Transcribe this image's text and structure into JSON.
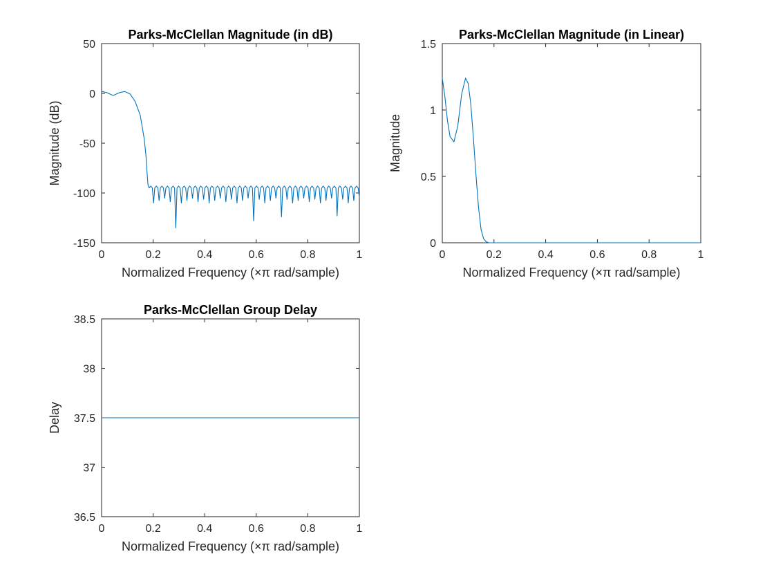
{
  "chart_data": [
    {
      "type": "line",
      "title": "Parks-McClellan Magnitude (in dB)",
      "xlabel": "Normalized Frequency (×π rad/sample)",
      "ylabel": "Magnitude (dB)",
      "xlim": [
        0,
        1
      ],
      "ylim": [
        -150,
        50
      ],
      "xticks": [
        0,
        0.2,
        0.4,
        0.6,
        0.8,
        1
      ],
      "xtick_labels": [
        "0",
        "0.2",
        "0.4",
        "0.6",
        "0.8",
        "1"
      ],
      "yticks": [
        -150,
        -100,
        -50,
        0,
        50
      ],
      "ytick_labels": [
        "-150",
        "-100",
        "-50",
        "0",
        "50"
      ],
      "grid": false,
      "line_color": "#0072BD",
      "series": [
        {
          "x": [
            0,
            0.02,
            0.045,
            0.07,
            0.09,
            0.11,
            0.13,
            0.15,
            0.165,
            0.172,
            0.176,
            0.18,
            0.185,
            0.2,
            0.25,
            0.3,
            0.35,
            0.4,
            0.45,
            0.5,
            0.55,
            0.6,
            0.65,
            0.7,
            0.75,
            0.8,
            0.85,
            0.9,
            0.95,
            1.0
          ],
          "y": [
            1.9,
            0.8,
            -2.1,
            0.8,
            1.9,
            -0.5,
            -8,
            -22,
            -45,
            -62,
            -78,
            -92,
            -93,
            -93,
            -93,
            -93,
            -93,
            -93,
            -93,
            -93,
            -93,
            -93,
            -93,
            -93,
            -93,
            -93,
            -93,
            -93,
            -93,
            -93
          ]
        }
      ],
      "stopband": {
        "start": 0.18,
        "ripple_peak_db": -93,
        "lobe_count": 38,
        "typical_notch_db": -110,
        "deep_notches": [
          {
            "x": 0.285,
            "y": -135
          },
          {
            "x": 0.585,
            "y": -128
          },
          {
            "x": 0.7,
            "y": -124
          },
          {
            "x": 0.91,
            "y": -123
          }
        ]
      }
    },
    {
      "type": "line",
      "title": "Parks-McClellan Magnitude (in Linear)",
      "xlabel": "Normalized Frequency (×π rad/sample)",
      "ylabel": "Magnitude",
      "xlim": [
        0,
        1
      ],
      "ylim": [
        0,
        1.5
      ],
      "xticks": [
        0,
        0.2,
        0.4,
        0.6,
        0.8,
        1
      ],
      "xtick_labels": [
        "0",
        "0.2",
        "0.4",
        "0.6",
        "0.8",
        "1"
      ],
      "yticks": [
        0,
        0.5,
        1,
        1.5
      ],
      "ytick_labels": [
        "0",
        "0.5",
        "1",
        "1.5"
      ],
      "grid": false,
      "line_color": "#0072BD",
      "series": [
        {
          "x": [
            0,
            0.01,
            0.02,
            0.03,
            0.045,
            0.06,
            0.075,
            0.09,
            0.1,
            0.11,
            0.12,
            0.13,
            0.14,
            0.15,
            0.16,
            0.17,
            0.18,
            0.2,
            0.3,
            0.5,
            0.7,
            0.9,
            1.0
          ],
          "y": [
            1.24,
            1.1,
            0.92,
            0.8,
            0.76,
            0.88,
            1.12,
            1.24,
            1.2,
            1.05,
            0.8,
            0.52,
            0.27,
            0.1,
            0.03,
            0.008,
            0,
            0,
            0,
            0,
            0,
            0,
            0
          ]
        }
      ]
    },
    {
      "type": "line",
      "title": "Parks-McClellan Group Delay",
      "xlabel": "Normalized Frequency (×π rad/sample)",
      "ylabel": "Delay",
      "xlim": [
        0,
        1
      ],
      "ylim": [
        36.5,
        38.5
      ],
      "xticks": [
        0,
        0.2,
        0.4,
        0.6,
        0.8,
        1
      ],
      "xtick_labels": [
        "0",
        "0.2",
        "0.4",
        "0.6",
        "0.8",
        "1"
      ],
      "yticks": [
        36.5,
        37,
        37.5,
        38,
        38.5
      ],
      "ytick_labels": [
        "36.5",
        "37",
        "37.5",
        "38",
        "38.5"
      ],
      "grid": false,
      "line_color": "#0072BD",
      "series": [
        {
          "x": [
            0,
            1
          ],
          "y": [
            37.5,
            37.5
          ]
        }
      ]
    }
  ]
}
